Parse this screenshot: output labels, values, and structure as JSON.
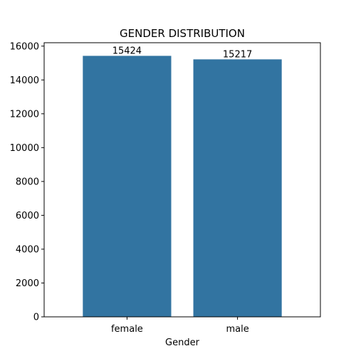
{
  "chart_data": {
    "type": "bar",
    "title": "GENDER DISTRIBUTION",
    "xlabel": "Gender",
    "ylabel": "",
    "categories": [
      "female",
      "male"
    ],
    "values": [
      15424,
      15217
    ],
    "value_labels": [
      "15424",
      "15217"
    ],
    "ylim": [
      0,
      16200
    ],
    "yticks": [
      0,
      2000,
      4000,
      6000,
      8000,
      10000,
      12000,
      14000,
      16000
    ],
    "ytick_labels": [
      "0",
      "2000",
      "4000",
      "6000",
      "8000",
      "10000",
      "12000",
      "14000",
      "16000"
    ],
    "grid": false,
    "legend": "none",
    "bar_color": "#3274a1"
  }
}
